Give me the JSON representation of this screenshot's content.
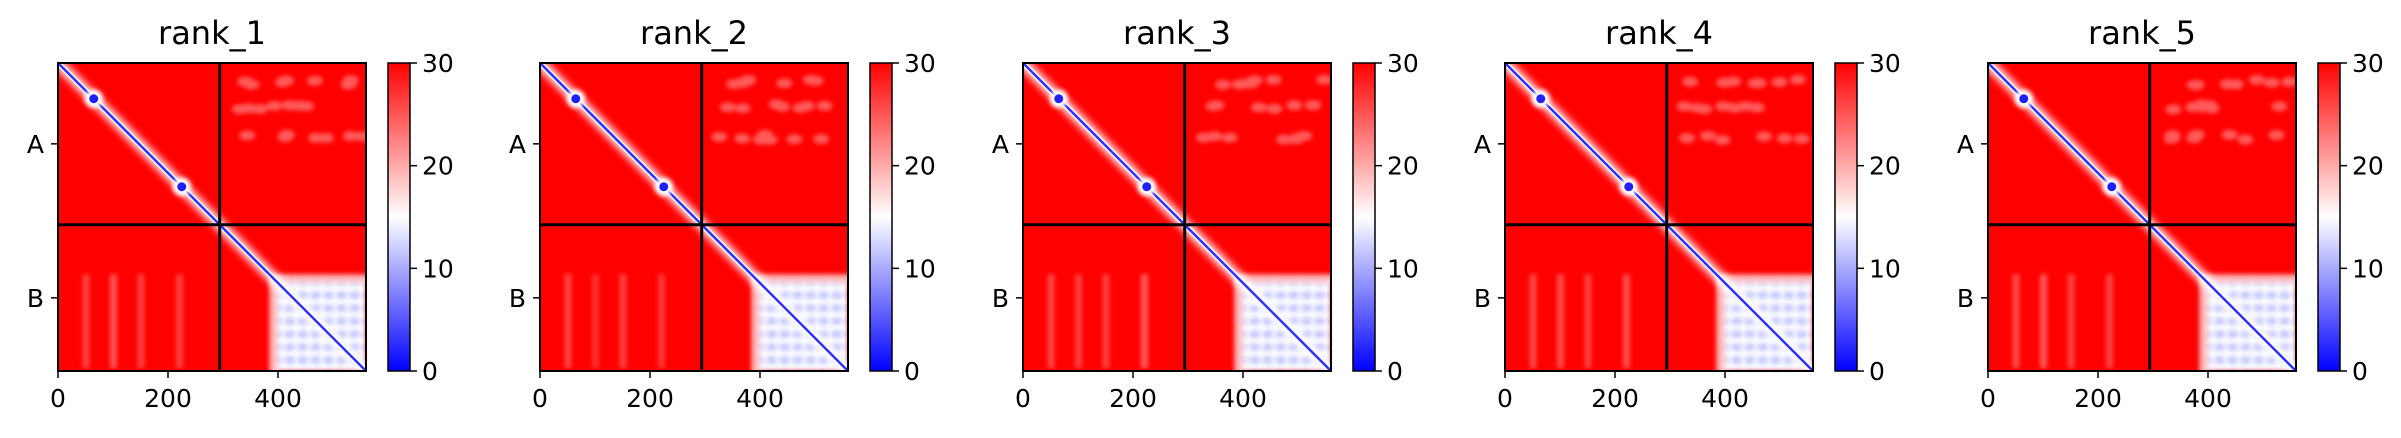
{
  "figure": {
    "background": "#ffffff",
    "colormap": {
      "name": "bwr",
      "low": "#0000ff",
      "mid": "#ffffff",
      "high": "#ff0000"
    }
  },
  "chart_data": {
    "type": "heatmap",
    "description_units": "residue index",
    "x_range": [
      0,
      560
    ],
    "y_range": [
      560,
      0
    ],
    "value_range": [
      0,
      30
    ],
    "x_ticks": [
      "0",
      "200",
      "400"
    ],
    "x_tick_values": [
      0,
      200,
      400
    ],
    "chain_boundary": 294,
    "y_tick_labels": [
      "A",
      "B"
    ],
    "colorbar_ticks": [
      "0",
      "10",
      "20",
      "30"
    ],
    "colorbar_tick_values": [
      0,
      10,
      20,
      30
    ],
    "panels": [
      {
        "title": "rank_1"
      },
      {
        "title": "rank_2"
      },
      {
        "title": "rank_3"
      },
      {
        "title": "rank_4"
      },
      {
        "title": "rank_5"
      }
    ]
  }
}
